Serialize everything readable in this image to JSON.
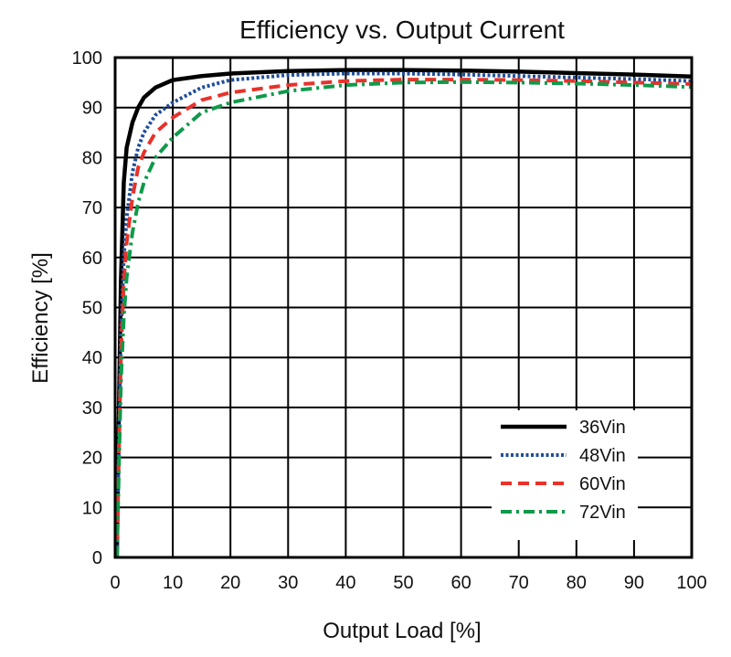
{
  "chart_data": {
    "type": "line",
    "title": "Efficiency vs. Output Current",
    "xlabel": "Output Load [%]",
    "ylabel": "Efficiency [%]",
    "xlim": [
      0,
      100
    ],
    "ylim": [
      0,
      100
    ],
    "xticks": [
      0,
      10,
      20,
      30,
      40,
      50,
      60,
      70,
      80,
      90,
      100
    ],
    "yticks": [
      0,
      10,
      20,
      30,
      40,
      50,
      60,
      70,
      80,
      90,
      100
    ],
    "xtick_labels": [
      "0",
      "10",
      "20",
      "30",
      "40",
      "50",
      "60",
      "70",
      "80",
      "90",
      "100"
    ],
    "ytick_labels": [
      "0",
      "10",
      "20",
      "30",
      "40",
      "50",
      "60",
      "70",
      "80",
      "90",
      "100"
    ],
    "grid": true,
    "legend_position": "bottom-right",
    "series": [
      {
        "name": "36Vin",
        "color": "#000000",
        "style": "solid",
        "x": [
          0.3,
          0.6,
          1,
          1.5,
          2,
          3,
          4,
          5,
          7,
          10,
          15,
          20,
          30,
          40,
          50,
          60,
          70,
          80,
          90,
          100
        ],
        "y": [
          0,
          25,
          55,
          75,
          82,
          87,
          90,
          92,
          94,
          95.5,
          96.3,
          96.8,
          97.3,
          97.5,
          97.5,
          97.4,
          97.2,
          96.9,
          96.6,
          96.2
        ]
      },
      {
        "name": "48Vin",
        "color": "#1f4e99",
        "style": "dotted",
        "x": [
          0.3,
          0.6,
          1,
          1.5,
          2,
          3,
          4,
          5,
          7,
          10,
          15,
          20,
          30,
          40,
          50,
          60,
          70,
          80,
          90,
          100
        ],
        "y": [
          0,
          20,
          45,
          60,
          68,
          77,
          82,
          85,
          88.5,
          91,
          94,
          95.5,
          96.5,
          96.8,
          96.8,
          96.6,
          96.3,
          96,
          95.7,
          95.3
        ]
      },
      {
        "name": "60Vin",
        "color": "#e8322b",
        "style": "dashed",
        "x": [
          0.3,
          0.6,
          1,
          1.5,
          2,
          3,
          4,
          5,
          7,
          10,
          15,
          20,
          30,
          40,
          50,
          60,
          70,
          80,
          90,
          100
        ],
        "y": [
          0,
          18,
          40,
          55,
          63,
          72,
          78,
          81,
          85,
          88,
          91.5,
          93,
          94.5,
          95.3,
          95.6,
          95.6,
          95.5,
          95.3,
          95,
          94.7
        ]
      },
      {
        "name": "72Vin",
        "color": "#0f9a4a",
        "style": "dashdot",
        "x": [
          0.3,
          0.6,
          1,
          1.5,
          2,
          3,
          4,
          5,
          7,
          10,
          15,
          20,
          30,
          40,
          50,
          60,
          70,
          80,
          90,
          100
        ],
        "y": [
          0,
          15,
          35,
          48,
          56,
          65,
          71,
          75,
          80,
          84,
          89,
          91,
          93.3,
          94.5,
          95,
          95.1,
          95,
          94.8,
          94.5,
          94.1
        ]
      }
    ]
  }
}
